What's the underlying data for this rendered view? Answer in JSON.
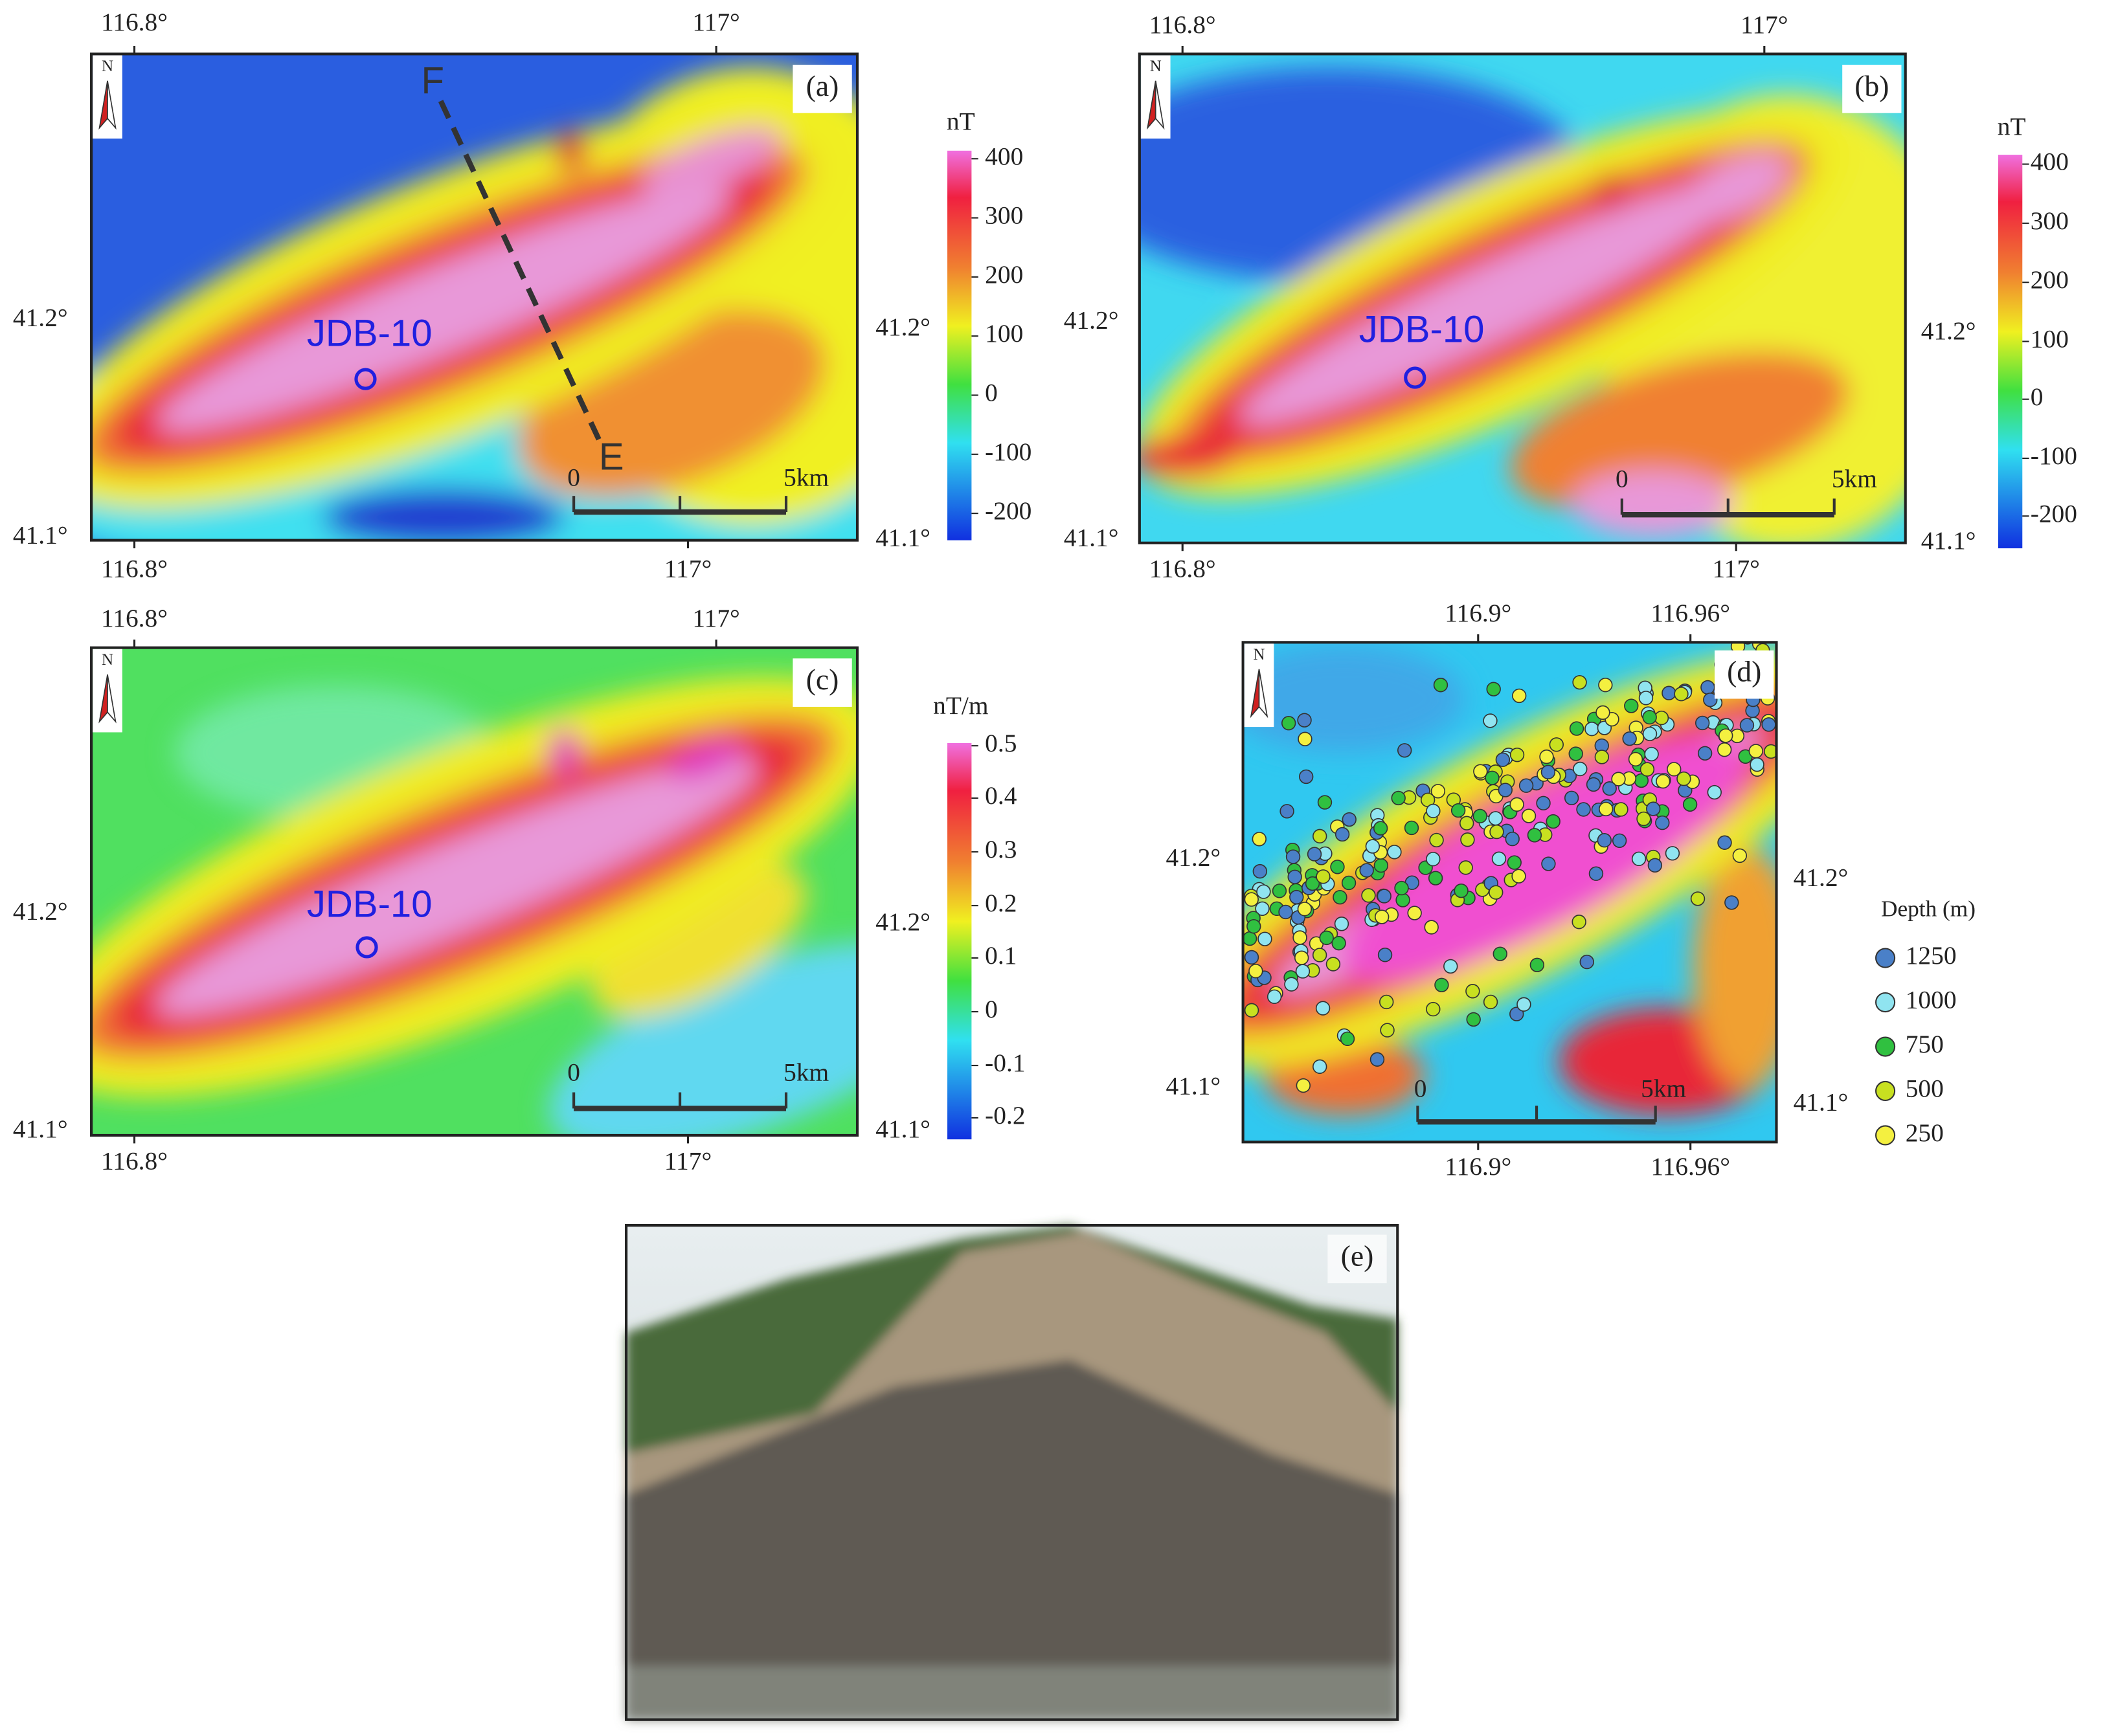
{
  "panels": [
    {
      "label": "(a)",
      "north": "N",
      "top_ticks": [
        "116.8°",
        "117°"
      ],
      "bottom_ticks": [
        "116.8°",
        "117°"
      ],
      "left_ticks": [
        "41.2°",
        "41.1°"
      ],
      "right_ticks": [
        "41.2°",
        "41.1°"
      ],
      "colorbar": {
        "unit": "nT",
        "ticks": [
          "400",
          "300",
          "200",
          "100",
          "0",
          "-100",
          "-200"
        ]
      },
      "annotations": [
        "JDB-10",
        "F",
        "E"
      ],
      "scale_bar": [
        "0",
        "5km"
      ]
    },
    {
      "label": "(b)",
      "north": "N",
      "top_ticks": [
        "116.8°",
        "117°"
      ],
      "bottom_ticks": [
        "116.8°",
        "117°"
      ],
      "left_ticks": [
        "41.2°",
        "41.1°"
      ],
      "right_ticks": [
        "41.2°",
        "41.1°"
      ],
      "colorbar": {
        "unit": "nT",
        "ticks": [
          "400",
          "300",
          "200",
          "100",
          "0",
          "-100",
          "-200"
        ]
      },
      "annotations": [
        "JDB-10"
      ],
      "scale_bar": [
        "0",
        "5km"
      ]
    },
    {
      "label": "(c)",
      "north": "N",
      "top_ticks": [
        "116.8°",
        "117°"
      ],
      "bottom_ticks": [
        "116.8°",
        "117°"
      ],
      "left_ticks": [
        "41.2°",
        "41.1°"
      ],
      "right_ticks": [
        "41.2°",
        "41.1°"
      ],
      "colorbar": {
        "unit": "nT/m",
        "ticks": [
          "0.5",
          "0.4",
          "0.3",
          "0.2",
          "0.1",
          "0",
          "-0.1",
          "-0.2"
        ]
      },
      "annotations": [
        "JDB-10"
      ],
      "scale_bar": [
        "0",
        "5km"
      ]
    },
    {
      "label": "(d)",
      "north": "N",
      "top_ticks": [
        "116.9°",
        "116.96°"
      ],
      "bottom_ticks": [
        "116.9°",
        "116.96°"
      ],
      "left_ticks": [
        "41.2°",
        "41.1°"
      ],
      "right_ticks": [
        "41.2°",
        "41.1°"
      ],
      "scale_bar": [
        "0",
        "5km"
      ],
      "legend": {
        "title": "Depth (m)",
        "items": [
          {
            "label": "1250",
            "color": "#4a80c8"
          },
          {
            "label": "1000",
            "color": "#90e4f0"
          },
          {
            "label": "750",
            "color": "#30c040"
          },
          {
            "label": "500",
            "color": "#c8e020"
          },
          {
            "label": "250",
            "color": "#f4f040"
          }
        ]
      }
    },
    {
      "label": "(e)"
    }
  ]
}
